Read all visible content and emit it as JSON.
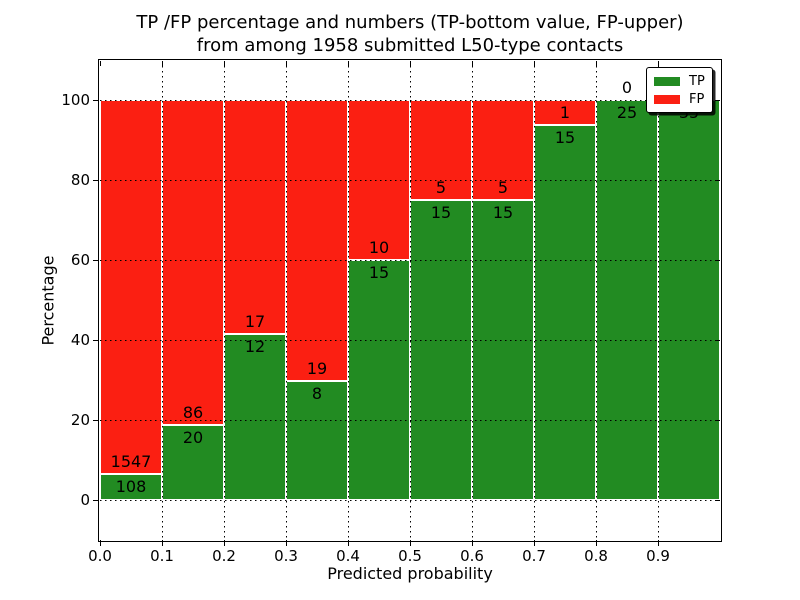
{
  "title": {
    "line1": "TP /FP percentage and numbers (TP-bottom value, FP-upper)",
    "line2": "from among 1958 submitted L50-type contacts"
  },
  "axes": {
    "xlabel": "Predicted probability",
    "ylabel": "Percentage",
    "x_tick_labels": [
      "0.0",
      "0.1",
      "0.2",
      "0.3",
      "0.4",
      "0.5",
      "0.6",
      "0.7",
      "0.8",
      "0.9"
    ],
    "y_tick_labels": [
      "0",
      "20",
      "40",
      "60",
      "80",
      "100"
    ],
    "y_tick_values": [
      0,
      20,
      40,
      60,
      80,
      100
    ]
  },
  "legend": {
    "items": [
      {
        "label": "TP",
        "color": "#228B22"
      },
      {
        "label": "FP",
        "color": "#fb1f12"
      }
    ]
  },
  "colors": {
    "tp": "#228B22",
    "fp": "#fb1f12",
    "grid": "#000000",
    "background": "#ffffff",
    "text": "#000000"
  },
  "chart_data": {
    "type": "bar",
    "stacked": true,
    "normalized_to_percent": true,
    "title": "TP /FP percentage and numbers (TP-bottom value, FP-upper) from among 1958 submitted L50-type contacts",
    "xlabel": "Predicted probability",
    "ylabel": "Percentage",
    "categories": [
      "0.0",
      "0.1",
      "0.2",
      "0.3",
      "0.4",
      "0.5",
      "0.6",
      "0.7",
      "0.8",
      "0.9"
    ],
    "bin_width": 0.1,
    "series": [
      {
        "name": "TP",
        "color": "#228B22",
        "values": [
          108,
          20,
          12,
          8,
          15,
          15,
          15,
          15,
          25,
          35
        ]
      },
      {
        "name": "FP",
        "color": "#fb1f12",
        "values": [
          1547,
          86,
          17,
          19,
          10,
          5,
          5,
          1,
          0,
          0
        ]
      }
    ],
    "tp_percent_of_bin": [
      6.53,
      18.87,
      41.38,
      29.63,
      60.0,
      75.0,
      75.0,
      93.75,
      100.0,
      100.0
    ],
    "xlim": [
      0.0,
      1.0
    ],
    "ylim": [
      -10,
      110
    ],
    "grid": true,
    "grid_style": "dotted",
    "legend_position": "upper right"
  }
}
